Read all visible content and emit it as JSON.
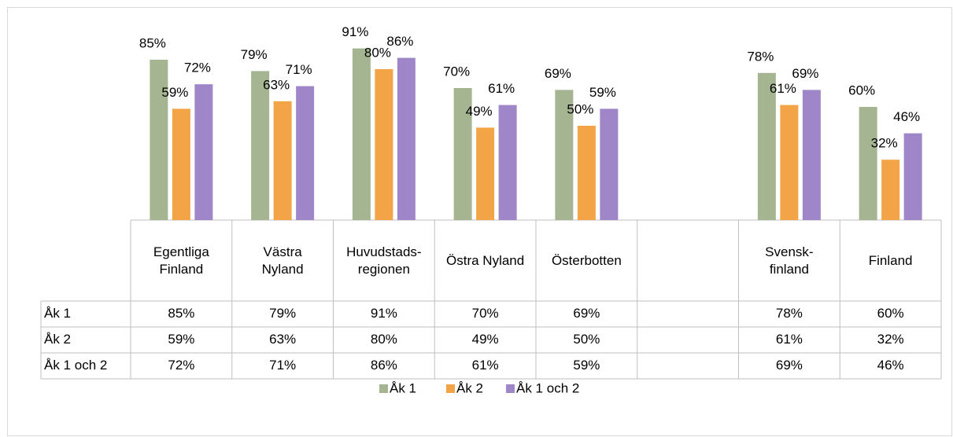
{
  "chart_data": {
    "type": "bar",
    "categories": [
      "Egentliga Finland",
      "Västra Nyland",
      "Huvudstads-regionen",
      "Östra Nyland",
      "Österbotten",
      null,
      "Svensk-finland",
      "Finland"
    ],
    "series": [
      {
        "name": "Åk 1",
        "color": "#a5b592",
        "values": [
          85,
          79,
          91,
          70,
          69,
          null,
          78,
          60
        ],
        "value_labels": [
          "85%",
          "79%",
          "91%",
          "70%",
          "69%",
          null,
          "78%",
          "60%"
        ]
      },
      {
        "name": "Åk 2",
        "color": "#f3a447",
        "values": [
          59,
          63,
          80,
          49,
          50,
          null,
          61,
          32
        ],
        "value_labels": [
          "59%",
          "63%",
          "80%",
          "49%",
          "50%",
          null,
          "61%",
          "32%"
        ]
      },
      {
        "name": "Åk 1 och 2",
        "color": "#9e86c8",
        "values": [
          72,
          71,
          86,
          61,
          59,
          null,
          69,
          46
        ],
        "value_labels": [
          "72%",
          "71%",
          "86%",
          "61%",
          "59%",
          null,
          "69%",
          "46%"
        ]
      }
    ],
    "ylim": [
      0,
      100
    ],
    "legend": "bottom",
    "data_table": true
  }
}
